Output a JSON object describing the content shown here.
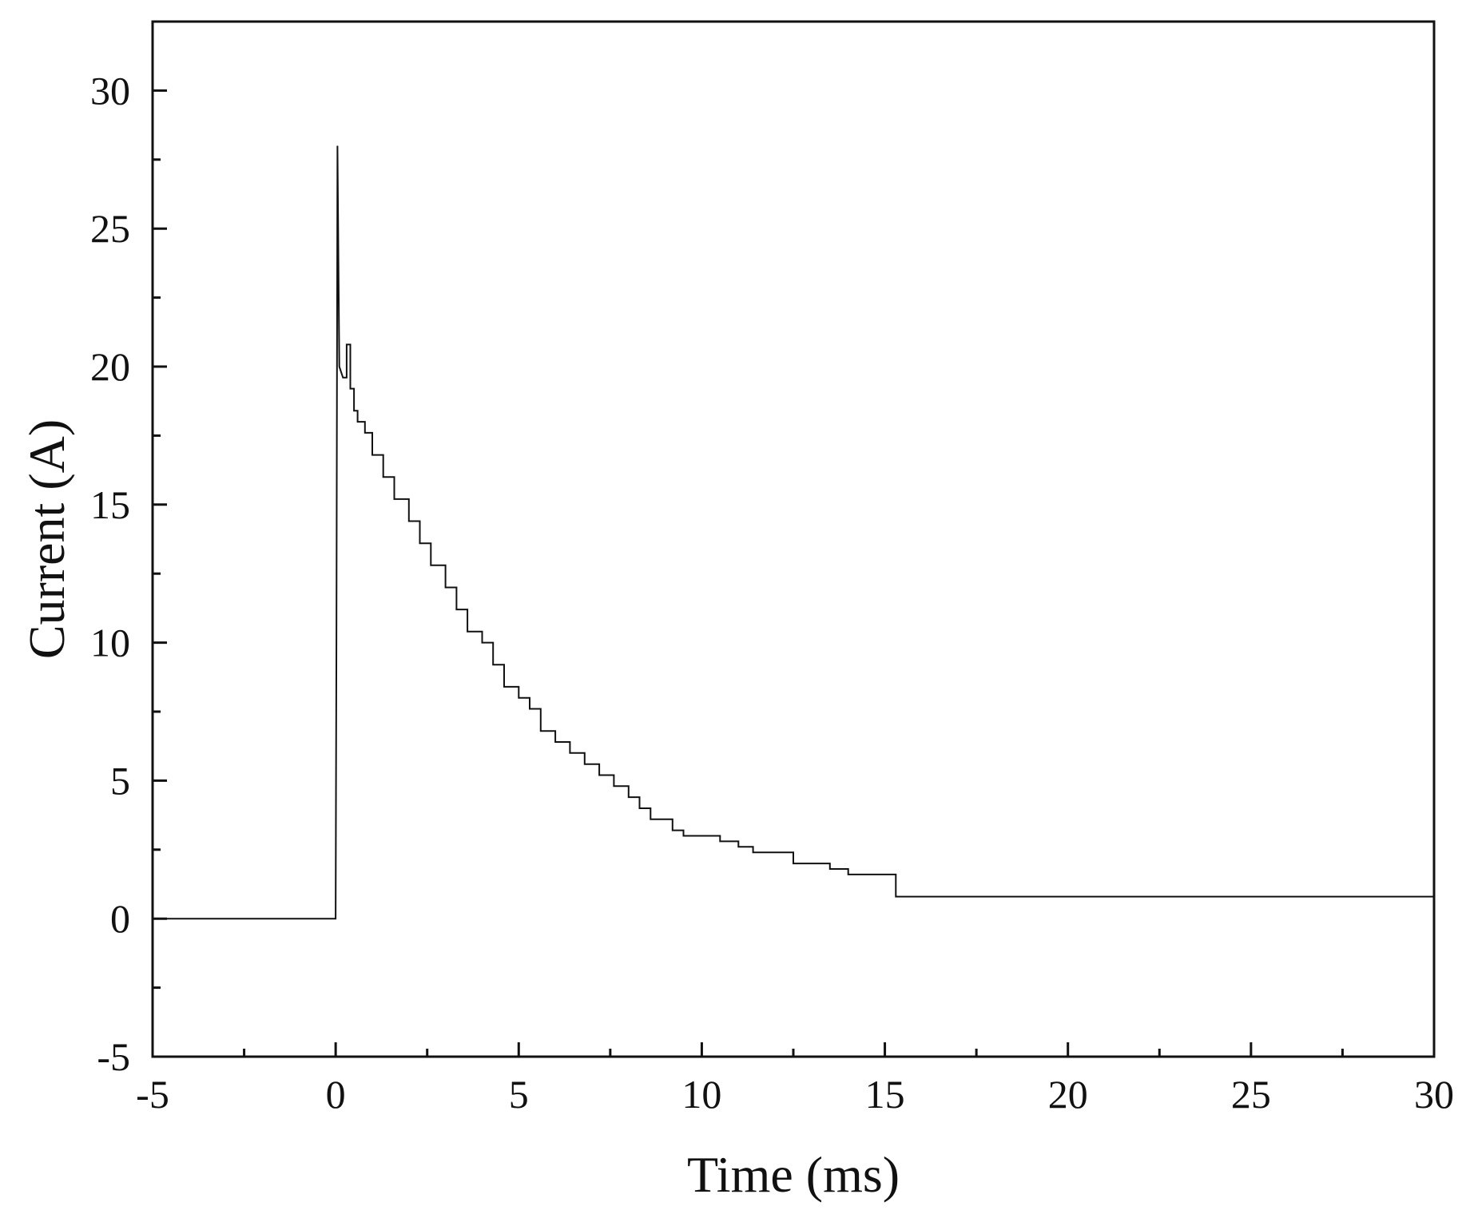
{
  "chart_data": {
    "type": "line",
    "title": "",
    "xlabel": "Time (ms)",
    "ylabel": "Current (A)",
    "xlim": [
      -5,
      30
    ],
    "ylim": [
      -5,
      32.5
    ],
    "grid": false,
    "legend": "none",
    "line_color": "#111111",
    "x_ticks": [
      "-5",
      "0",
      "5",
      "10",
      "15",
      "20",
      "25",
      "30"
    ],
    "y_ticks": [
      "-5",
      "0",
      "5",
      "10",
      "15",
      "20",
      "25",
      "30"
    ],
    "series": [
      {
        "x": [
          -5,
          -4.5,
          0,
          0.02,
          0.05,
          0.1,
          0.2,
          0.3,
          0.4,
          0.5,
          0.6,
          0.8,
          1.0,
          1.3,
          1.6,
          2.0,
          2.3,
          2.6,
          3.0,
          3.3,
          3.6,
          4.0,
          4.3,
          4.6,
          5.0,
          5.3,
          5.6,
          6.0,
          6.4,
          6.8,
          7.2,
          7.6,
          8.0,
          8.3,
          8.6,
          9.0,
          9.2,
          9.5,
          10.0,
          10.5,
          11.0,
          11.4,
          12.0,
          12.5,
          13.0,
          13.5,
          14.0,
          14.5,
          15.0,
          15.3,
          15.8,
          16.4,
          17.0,
          17.5,
          18.0,
          18.5,
          19.0,
          19.5,
          20.0,
          21.0,
          22.0,
          23.0,
          23.3,
          24.0,
          25.0,
          26.0,
          27.0,
          27.2,
          28.0,
          29.0,
          29.8,
          30.0
        ],
        "y": [
          0,
          0,
          0,
          10,
          28,
          20,
          19.6,
          20.8,
          19.2,
          18.4,
          18.0,
          17.6,
          16.8,
          16.0,
          15.2,
          14.4,
          13.6,
          12.8,
          12.0,
          11.2,
          10.4,
          10.0,
          9.2,
          8.4,
          8.0,
          7.6,
          6.8,
          6.4,
          6.0,
          5.6,
          5.2,
          4.8,
          4.4,
          4.0,
          3.6,
          3.6,
          3.2,
          3.0,
          3.0,
          2.8,
          2.6,
          2.4,
          2.4,
          2.0,
          2.0,
          1.8,
          1.6,
          1.6,
          1.6,
          0.8,
          0.8,
          0.8,
          0.8,
          0.8,
          0.8,
          0.8,
          0.8,
          0.8,
          0.8,
          0.8,
          0.8,
          0.8,
          0.8,
          0.8,
          0.8,
          0.8,
          0.8,
          0.8,
          0.8,
          0.8,
          0.8,
          0.8
        ]
      }
    ]
  }
}
